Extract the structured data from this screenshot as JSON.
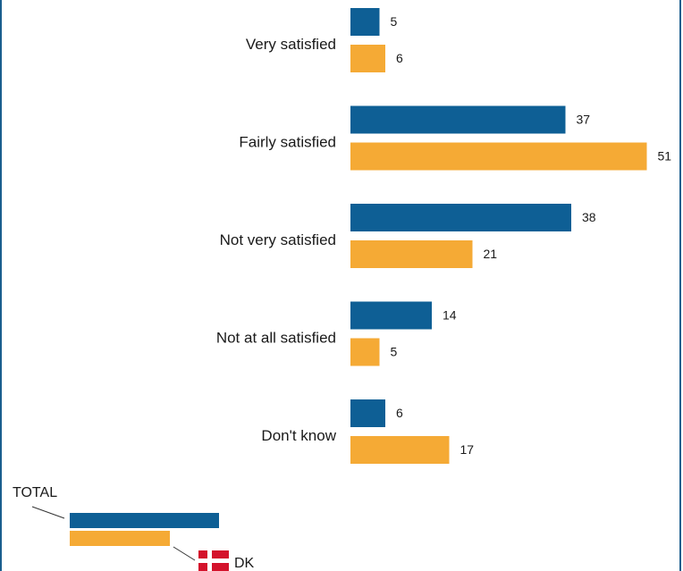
{
  "chart_data": {
    "type": "bar",
    "orientation": "horizontal",
    "categories": [
      "Very satisfied",
      "Fairly satisfied",
      "Not very satisfied",
      "Not at all satisfied",
      "Don't know"
    ],
    "series": [
      {
        "name": "TOTAL",
        "color": "#0e5f95",
        "values": [
          5,
          37,
          38,
          14,
          6
        ]
      },
      {
        "name": "DK",
        "color": "#f5aa35",
        "values": [
          6,
          51,
          21,
          5,
          17
        ]
      }
    ],
    "grid": false,
    "legend": "bottom-left",
    "legend_flag": "danish-flag-icon"
  }
}
